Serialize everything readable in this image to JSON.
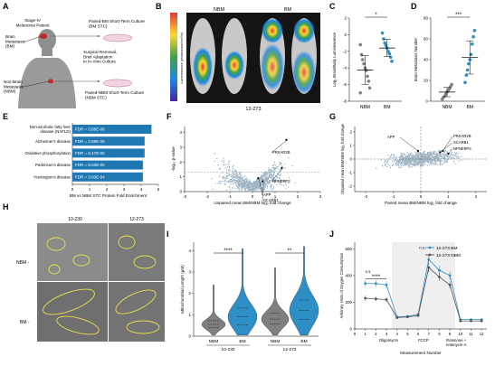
{
  "panels": {
    "a": "A",
    "b": "B",
    "c": "C",
    "d": "D",
    "e": "E",
    "f": "F",
    "g": "G",
    "h": "H",
    "i": "I",
    "j": "J"
  },
  "a": {
    "patient": "Stage-IV\nMelanoma Patient",
    "bm_label": "Brain\nMetastasis\n(BM)",
    "nbm_label": "Non-Brain\nMetastasis\n(NBM)",
    "bm_culture": "Paired-BM Short-Term Culture\n(BM STC)",
    "surgery": "Surgical Removal,\nBrief Adaptation\nto In-Vitro Culture",
    "nbm_culture": "Paired-NBM Short-Term Culture\n(NBM STC)"
  },
  "b": {
    "nbm": "NBM",
    "bm": "BM",
    "sample": "12-273",
    "scale_label": "Luminescence (photons/sec/cm²/sr)"
  },
  "c": {
    "ylabel": "Log₂ Brain/Body Luminescence",
    "xlabels": [
      "NBM",
      "BM"
    ],
    "sig": "*",
    "yticks": [
      "-8",
      "-6",
      "-4",
      "-2",
      "0",
      "2"
    ],
    "nbm_values": [
      -1.2,
      -2.4,
      -3.0,
      -3.5,
      -4.0,
      -4.3,
      -5.0,
      -5.6,
      -6.4,
      -7.0
    ],
    "bm_values": [
      0.2,
      -0.5,
      -1.0,
      -1.3,
      -1.6,
      -2.0,
      -2.3,
      -2.7,
      -3.2
    ],
    "color_nbm": "#7f7f7f",
    "color_bm": "#2e8fc6"
  },
  "d": {
    "ylabel": "Brain Metastasis Number",
    "xlabels": [
      "NBM",
      "BM"
    ],
    "sig": "***",
    "yticks": [
      "0",
      "20",
      "40",
      "60",
      "80"
    ],
    "nbm_values": [
      2,
      4,
      5,
      7,
      9,
      10,
      12,
      14,
      16
    ],
    "bm_values": [
      18,
      25,
      30,
      36,
      40,
      45,
      55,
      62,
      68
    ],
    "color_nbm": "#7f7f7f",
    "color_bm": "#2e8fc6"
  },
  "e": {
    "xlabel": "BM vs NBM STC Protein Fold Enrichment",
    "ticks": [
      "0",
      "1",
      "2",
      "3",
      "4",
      "5"
    ],
    "bars": [
      {
        "label": "Non-alcoholic fatty liver\ndisease (NAFLD)",
        "value": 4.6,
        "fdr": "FDR = 3.88E-06"
      },
      {
        "label": "Alzheimer's disease",
        "value": 4.2,
        "fdr": "FDR = 2.88E-06"
      },
      {
        "label": "Oxidative phosphorylation",
        "value": 4.2,
        "fdr": "FDR = 6.17E-05"
      },
      {
        "label": "Parkinson's disease",
        "value": 4.1,
        "fdr": "FDR = 6.03E-05"
      },
      {
        "label": "Huntington's disease",
        "value": 4.1,
        "fdr": "FDR = 3.03E-04"
      }
    ],
    "color": "#1f78b4"
  },
  "f": {
    "ylabel": "-log₁₀ p-value",
    "xlabel": "Unpaired mean BM/NBM log₂ fold change",
    "xticks": [
      "-3",
      "-2",
      "-1",
      "0",
      "1",
      "2",
      "3"
    ],
    "yticks": [
      "0",
      "1",
      "2",
      "3",
      "4"
    ],
    "genes": [
      "PRKAR2B",
      "NPNEPP3",
      "APP",
      "SCARB1"
    ]
  },
  "g": {
    "ylabel": "Unpaired mean BM/NBM log₂ fold change",
    "xlabel": "Paired mean BM/NBM log₂ fold change",
    "xticks": [
      "-2",
      "-1",
      "0",
      "1",
      "2"
    ],
    "yticks": [
      "-2",
      "-1",
      "0",
      "1",
      "2"
    ],
    "genes": [
      "APP",
      "PRKAR2B",
      "SCARB1",
      "NPNEPP3"
    ]
  },
  "h": {
    "col1": "10-230",
    "col2": "12-273",
    "row1": "NBM -",
    "row2": "BM -"
  },
  "i": {
    "ylabel": "Mitochondrial Length (µM)",
    "yticks": [
      "0",
      "1",
      "2",
      "3",
      "4"
    ],
    "xlabels": [
      "NBM",
      "BM",
      "NBM",
      "BM"
    ],
    "groups": [
      "10-230",
      "12-273"
    ],
    "sig1": "****",
    "sig2": "**",
    "color_nbm": "#7f7f7f",
    "color_bm": "#2e8fc6"
  },
  "j": {
    "ylabel": "Arbitrary Units of Oxygen Consumption",
    "xlabel": "Measurement Number",
    "xticks": [
      "0",
      "1",
      "2",
      "3",
      "4",
      "5",
      "6",
      "7",
      "8",
      "9",
      "10",
      "11",
      "12"
    ],
    "yticks": [
      "0",
      "200",
      "400",
      "600"
    ],
    "legend_bm": "12-273 BM",
    "legend_nbm": "12-273 NBM",
    "sig": "****",
    "ns1": "n.s.",
    "ns2": "n.s.",
    "annot": [
      "Oligomycin",
      "FCCP",
      "Rotenone +\nAntimycin-A"
    ],
    "bm_values": [
      340,
      340,
      330,
      90,
      95,
      110,
      520,
      440,
      400,
      70,
      70,
      70
    ],
    "nbm_values": [
      230,
      225,
      220,
      85,
      90,
      100,
      460,
      390,
      330,
      60,
      60,
      60
    ],
    "color_bm": "#2e8fc6",
    "color_nbm": "#555555"
  }
}
